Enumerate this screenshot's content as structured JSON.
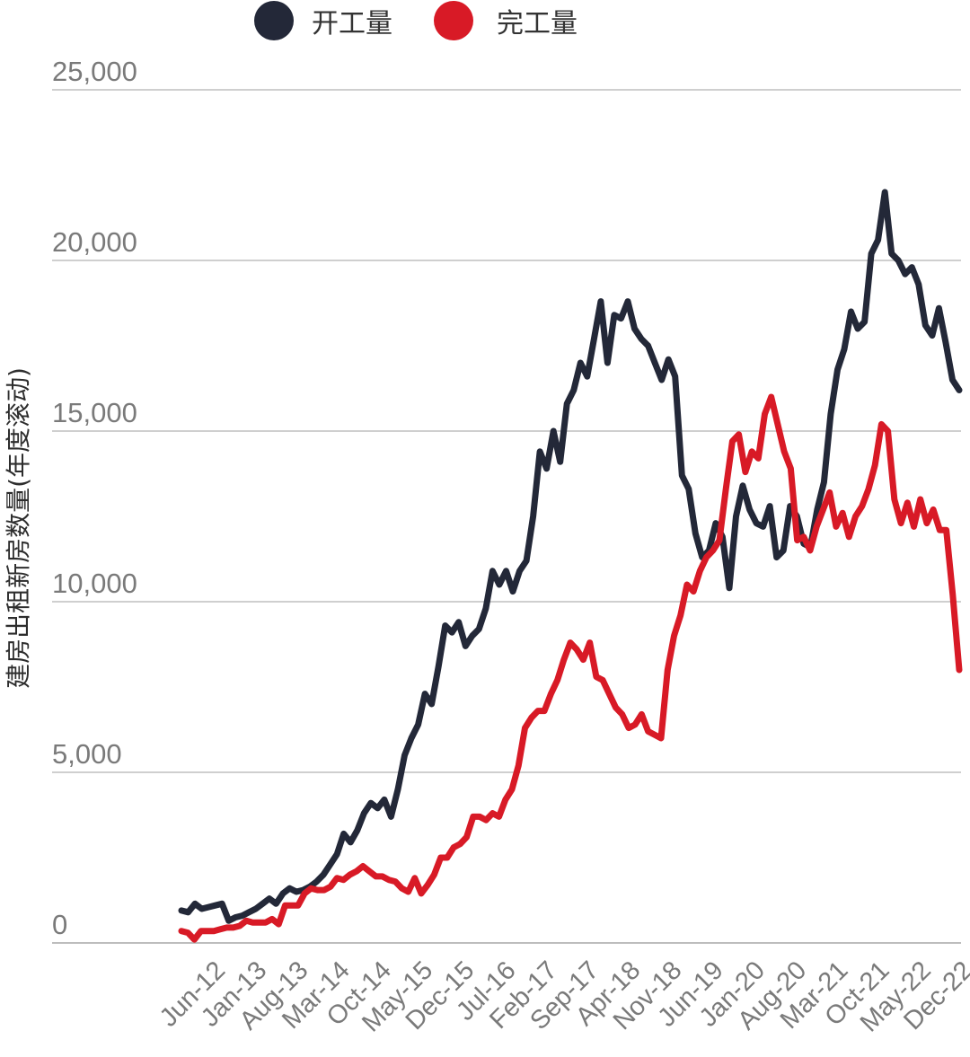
{
  "chart_data": {
    "type": "line",
    "title": "",
    "xlabel": "",
    "ylabel": "建房出租新房数量(年度滚动)",
    "ylim": [
      0,
      25000
    ],
    "yticks": [
      0,
      5000,
      10000,
      15000,
      20000,
      25000
    ],
    "ytick_labels": [
      "0",
      "5,000",
      "10,000",
      "15,000",
      "20,000",
      "25,000"
    ],
    "xrange": [
      "Jun-12",
      "Dec-22"
    ],
    "xtick_labels": [
      "Jun-12",
      "Jan-13",
      "Aug-13",
      "Mar-14",
      "Oct-14",
      "May-15",
      "Dec-15",
      "Jul-16",
      "Feb-17",
      "Sep-17",
      "Apr-18",
      "Nov-18",
      "Jun-19",
      "Jan-20",
      "Aug-20",
      "Mar-21",
      "Oct-21",
      "May-22",
      "Dec-22"
    ],
    "legend_position": "top",
    "series": [
      {
        "name": "开工量",
        "color": "#232838",
        "points": [
          [
            0,
            950
          ],
          [
            1,
            900
          ],
          [
            2,
            1150
          ],
          [
            3,
            1000
          ],
          [
            4,
            1050
          ],
          [
            5,
            1100
          ],
          [
            6,
            1150
          ],
          [
            7,
            650
          ],
          [
            8,
            750
          ],
          [
            9,
            800
          ],
          [
            10,
            900
          ],
          [
            11,
            1000
          ],
          [
            12,
            1150
          ],
          [
            13,
            1300
          ],
          [
            14,
            1150
          ],
          [
            15,
            1450
          ],
          [
            16,
            1600
          ],
          [
            17,
            1500
          ],
          [
            18,
            1550
          ],
          [
            19,
            1650
          ],
          [
            20,
            1800
          ],
          [
            21,
            2000
          ],
          [
            22,
            2300
          ],
          [
            23,
            2600
          ],
          [
            24,
            3200
          ],
          [
            25,
            2950
          ],
          [
            26,
            3300
          ],
          [
            27,
            3800
          ],
          [
            28,
            4100
          ],
          [
            29,
            3950
          ],
          [
            30,
            4200
          ],
          [
            31,
            3700
          ],
          [
            32,
            4500
          ],
          [
            33,
            5500
          ],
          [
            34,
            6000
          ],
          [
            35,
            6400
          ],
          [
            36,
            7300
          ],
          [
            37,
            7000
          ],
          [
            38,
            8100
          ],
          [
            39,
            9300
          ],
          [
            40,
            9100
          ],
          [
            41,
            9400
          ],
          [
            42,
            8700
          ],
          [
            43,
            9000
          ],
          [
            44,
            9200
          ],
          [
            45,
            9800
          ],
          [
            46,
            10900
          ],
          [
            47,
            10500
          ],
          [
            48,
            10900
          ],
          [
            49,
            10300
          ],
          [
            50,
            10900
          ],
          [
            51,
            11200
          ],
          [
            52,
            12500
          ],
          [
            53,
            14400
          ],
          [
            54,
            13900
          ],
          [
            55,
            15000
          ],
          [
            56,
            14100
          ],
          [
            57,
            15800
          ],
          [
            58,
            16200
          ],
          [
            59,
            17000
          ],
          [
            60,
            16600
          ],
          [
            61,
            17700
          ],
          [
            62,
            18800
          ],
          [
            63,
            17000
          ],
          [
            64,
            18400
          ],
          [
            65,
            18300
          ],
          [
            66,
            18800
          ],
          [
            67,
            18000
          ],
          [
            68,
            17700
          ],
          [
            69,
            17500
          ],
          [
            70,
            17000
          ],
          [
            71,
            16500
          ],
          [
            72,
            17100
          ],
          [
            73,
            16600
          ],
          [
            74,
            13700
          ],
          [
            75,
            13300
          ],
          [
            76,
            12000
          ],
          [
            77,
            11300
          ],
          [
            78,
            11500
          ],
          [
            79,
            12300
          ],
          [
            80,
            11900
          ],
          [
            81,
            10400
          ],
          [
            82,
            12500
          ],
          [
            83,
            13400
          ],
          [
            84,
            12700
          ],
          [
            85,
            12300
          ],
          [
            86,
            12200
          ],
          [
            87,
            12800
          ],
          [
            88,
            11300
          ],
          [
            89,
            11500
          ],
          [
            90,
            12800
          ],
          [
            91,
            12500
          ],
          [
            92,
            11700
          ],
          [
            93,
            11600
          ],
          [
            94,
            12700
          ],
          [
            95,
            13500
          ],
          [
            96,
            15500
          ],
          [
            97,
            16800
          ],
          [
            98,
            17400
          ],
          [
            99,
            18500
          ],
          [
            100,
            18000
          ],
          [
            101,
            18200
          ],
          [
            102,
            20200
          ],
          [
            103,
            20600
          ],
          [
            104,
            22000
          ],
          [
            105,
            20200
          ],
          [
            106,
            20000
          ],
          [
            107,
            19600
          ],
          [
            108,
            19800
          ],
          [
            109,
            19300
          ],
          [
            110,
            18100
          ],
          [
            111,
            17800
          ],
          [
            112,
            18600
          ],
          [
            113,
            17600
          ],
          [
            114,
            16500
          ],
          [
            115,
            16200
          ]
        ]
      },
      {
        "name": "完工量",
        "color": "#d81a26",
        "points": [
          [
            0,
            350
          ],
          [
            1,
            300
          ],
          [
            2,
            100
          ],
          [
            3,
            350
          ],
          [
            4,
            350
          ],
          [
            5,
            350
          ],
          [
            6,
            400
          ],
          [
            7,
            450
          ],
          [
            8,
            450
          ],
          [
            9,
            500
          ],
          [
            10,
            650
          ],
          [
            11,
            600
          ],
          [
            12,
            600
          ],
          [
            13,
            600
          ],
          [
            14,
            700
          ],
          [
            15,
            550
          ],
          [
            16,
            1100
          ],
          [
            17,
            1100
          ],
          [
            18,
            1100
          ],
          [
            19,
            1450
          ],
          [
            20,
            1600
          ],
          [
            21,
            1550
          ],
          [
            22,
            1550
          ],
          [
            23,
            1650
          ],
          [
            24,
            1900
          ],
          [
            25,
            1850
          ],
          [
            26,
            2000
          ],
          [
            27,
            2100
          ],
          [
            28,
            2250
          ],
          [
            29,
            2100
          ],
          [
            30,
            1950
          ],
          [
            31,
            1950
          ],
          [
            32,
            1850
          ],
          [
            33,
            1800
          ],
          [
            34,
            1600
          ],
          [
            35,
            1500
          ],
          [
            36,
            1900
          ],
          [
            37,
            1450
          ],
          [
            38,
            1700
          ],
          [
            39,
            2000
          ],
          [
            40,
            2500
          ],
          [
            41,
            2500
          ],
          [
            42,
            2800
          ],
          [
            43,
            2900
          ],
          [
            44,
            3100
          ],
          [
            45,
            3700
          ],
          [
            46,
            3700
          ],
          [
            47,
            3600
          ],
          [
            48,
            3800
          ],
          [
            49,
            3700
          ],
          [
            50,
            4200
          ],
          [
            51,
            4500
          ],
          [
            52,
            5200
          ],
          [
            53,
            6300
          ],
          [
            54,
            6600
          ],
          [
            55,
            6800
          ],
          [
            56,
            6800
          ],
          [
            57,
            7300
          ],
          [
            58,
            7700
          ],
          [
            59,
            8300
          ],
          [
            60,
            8800
          ],
          [
            61,
            8600
          ],
          [
            62,
            8300
          ],
          [
            63,
            8800
          ],
          [
            64,
            7800
          ],
          [
            65,
            7700
          ],
          [
            66,
            7300
          ],
          [
            67,
            6900
          ],
          [
            68,
            6700
          ],
          [
            69,
            6300
          ],
          [
            70,
            6400
          ],
          [
            71,
            6700
          ],
          [
            72,
            6200
          ],
          [
            73,
            6100
          ],
          [
            74,
            6000
          ],
          [
            75,
            8000
          ],
          [
            76,
            9000
          ],
          [
            77,
            9600
          ],
          [
            78,
            10500
          ],
          [
            79,
            10300
          ],
          [
            80,
            10900
          ],
          [
            81,
            11300
          ],
          [
            82,
            11500
          ],
          [
            83,
            11800
          ],
          [
            84,
            13300
          ],
          [
            85,
            14700
          ],
          [
            86,
            14900
          ],
          [
            87,
            13800
          ],
          [
            88,
            14400
          ],
          [
            89,
            14200
          ],
          [
            90,
            15500
          ],
          [
            91,
            16000
          ],
          [
            92,
            15200
          ],
          [
            93,
            14400
          ],
          [
            94,
            13900
          ],
          [
            95,
            11800
          ],
          [
            96,
            11900
          ],
          [
            97,
            11500
          ],
          [
            98,
            12200
          ],
          [
            99,
            12700
          ],
          [
            100,
            13200
          ],
          [
            101,
            12200
          ],
          [
            102,
            12600
          ],
          [
            103,
            11900
          ],
          [
            104,
            12500
          ],
          [
            105,
            12800
          ],
          [
            106,
            13300
          ],
          [
            107,
            14000
          ],
          [
            108,
            15200
          ],
          [
            109,
            15000
          ],
          [
            110,
            13000
          ],
          [
            111,
            12300
          ],
          [
            112,
            12900
          ],
          [
            113,
            12200
          ],
          [
            114,
            13000
          ],
          [
            115,
            12300
          ],
          [
            116,
            12700
          ],
          [
            117,
            12100
          ],
          [
            118,
            12100
          ],
          [
            119,
            10200
          ],
          [
            120,
            8000
          ]
        ]
      }
    ]
  }
}
